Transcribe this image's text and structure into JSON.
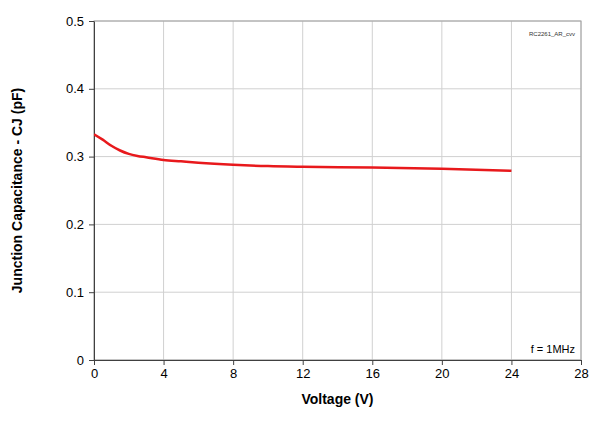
{
  "chart_data": {
    "type": "line",
    "x_label": "Voltage (V)",
    "y_label": "Junction Capacitance - CJ (pF)",
    "annotations": [
      "f = 1MHz",
      "RC2261_AR_cvv"
    ],
    "x": [
      0,
      0.5,
      1,
      1.5,
      2,
      2.5,
      3,
      4,
      5,
      6,
      8,
      10,
      12,
      16,
      20,
      24
    ],
    "values": [
      0.333,
      0.325,
      0.316,
      0.309,
      0.304,
      0.301,
      0.299,
      0.295,
      0.293,
      0.291,
      0.288,
      0.286,
      0.285,
      0.284,
      0.282,
      0.279
    ],
    "color": "#e8191c",
    "xlim": [
      0,
      28
    ],
    "xticks": [
      0,
      4,
      8,
      12,
      16,
      20,
      24,
      28
    ],
    "ylim": [
      0,
      0.5
    ],
    "yticks": [
      0,
      0.1,
      0.2,
      0.3,
      0.4,
      0.5
    ],
    "grid": true
  }
}
